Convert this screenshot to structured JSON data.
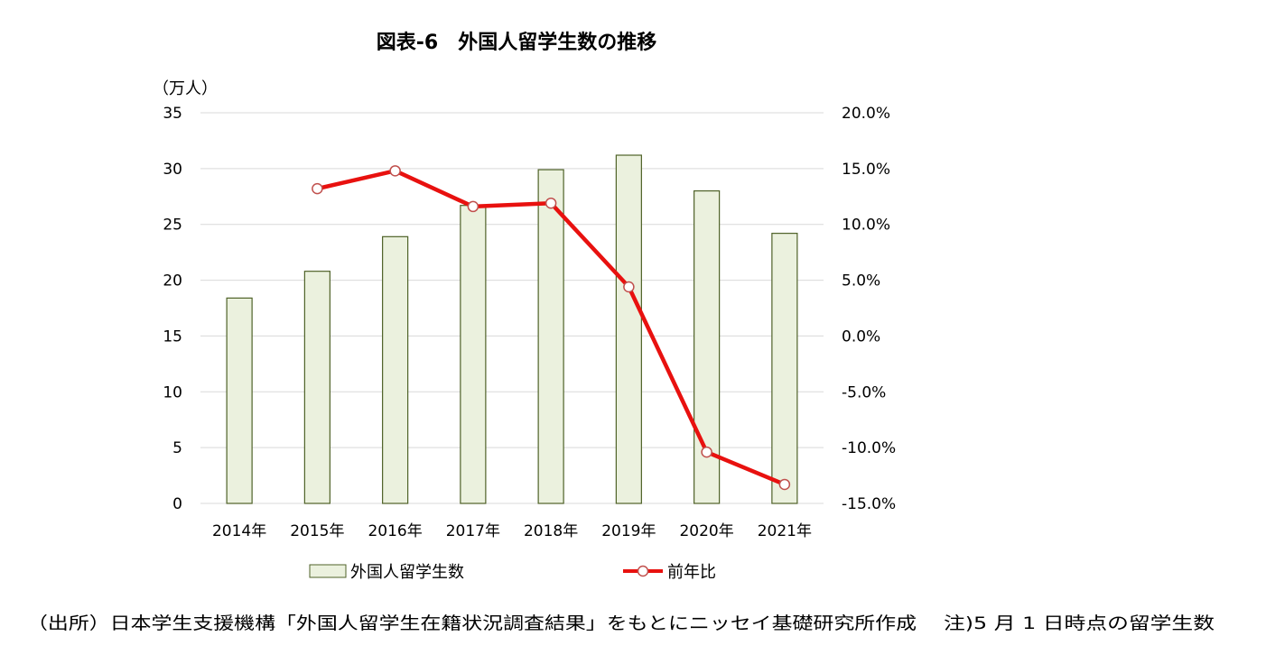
{
  "chart_data": {
    "type": "bar+line",
    "title": "図表-6　外国人留学生数の推移",
    "left_axis_unit": "（万人）",
    "categories": [
      "2014年",
      "2015年",
      "2016年",
      "2017年",
      "2018年",
      "2019年",
      "2020年",
      "2021年"
    ],
    "series": [
      {
        "name": "外国人留学生数",
        "type": "bar",
        "axis": "left",
        "values": [
          18.4,
          20.8,
          23.9,
          26.7,
          29.9,
          31.2,
          28.0,
          24.2
        ],
        "color": "#ebf1de",
        "border_color": "#4f6228"
      },
      {
        "name": "前年比",
        "type": "line",
        "axis": "right",
        "values": [
          null,
          13.2,
          14.8,
          11.6,
          11.9,
          4.4,
          -10.4,
          -13.3
        ],
        "color": "#e8110f",
        "marker": "open-circle"
      }
    ],
    "left_axis": {
      "min": 0,
      "max": 35,
      "ticks": [
        "0",
        "5",
        "10",
        "15",
        "20",
        "25",
        "30",
        "35"
      ]
    },
    "right_axis": {
      "min": -15,
      "max": 20,
      "ticks": [
        "-15.0%",
        "-10.0%",
        "-5.0%",
        "0.0%",
        "5.0%",
        "10.0%",
        "15.0%",
        "20.0%"
      ]
    },
    "grid": "horizontal",
    "legend_position": "bottom"
  },
  "footer": {
    "source": "（出所）日本学生支援機構「外国人留学生在籍状況調査結果」をもとにニッセイ基礎研究所作成",
    "note": "注)5 月 1 日時点の留学生数"
  }
}
